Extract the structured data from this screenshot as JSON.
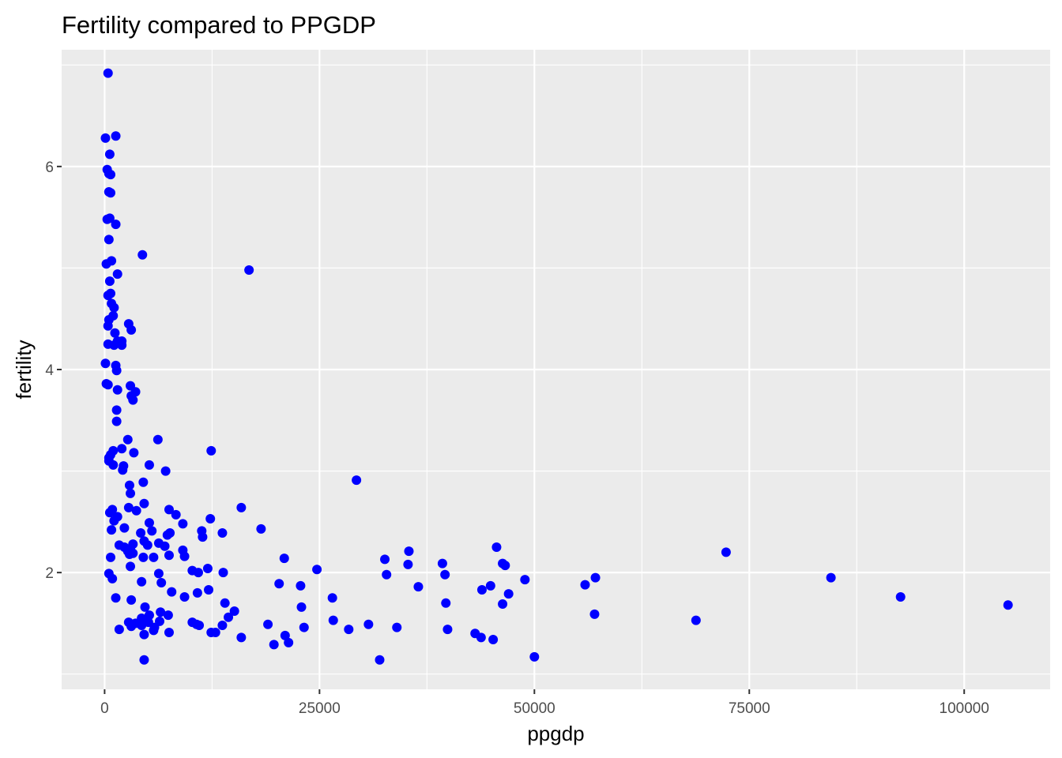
{
  "chart_data": {
    "type": "scatter",
    "title": "Fertility compared to PPGDP",
    "xlabel": "ppgdp",
    "ylabel": "fertility",
    "xlim": [
      -5000,
      110000
    ],
    "ylim": [
      0.85,
      7.15
    ],
    "x_ticks": [
      0,
      25000,
      50000,
      75000,
      100000
    ],
    "x_tick_labels": [
      "0",
      "25000",
      "50000",
      "75000",
      "100000"
    ],
    "y_ticks": [
      2,
      4,
      6
    ],
    "y_tick_labels": [
      "2",
      "4",
      "6"
    ],
    "x_minor_ticks": [
      12500,
      37500,
      62500,
      87500
    ],
    "y_minor_ticks": [
      1,
      3,
      5,
      7
    ],
    "grid": true,
    "colors": {
      "points": "#0000ff",
      "panel": "#ebebeb",
      "grid": "#ffffff",
      "tick_label": "#4d4d4d",
      "tick_mark": "#333333"
    },
    "series": [
      {
        "points": [
          [
            400,
            6.92
          ],
          [
            100,
            6.28
          ],
          [
            1300,
            6.3
          ],
          [
            300,
            5.97
          ],
          [
            600,
            6.12
          ],
          [
            500,
            5.93
          ],
          [
            700,
            5.92
          ],
          [
            500,
            5.75
          ],
          [
            700,
            5.74
          ],
          [
            300,
            5.48
          ],
          [
            600,
            5.49
          ],
          [
            1300,
            5.43
          ],
          [
            500,
            5.28
          ],
          [
            4400,
            5.13
          ],
          [
            800,
            5.07
          ],
          [
            200,
            5.04
          ],
          [
            1500,
            4.94
          ],
          [
            16800,
            4.98
          ],
          [
            600,
            4.87
          ],
          [
            400,
            4.73
          ],
          [
            700,
            4.75
          ],
          [
            800,
            4.65
          ],
          [
            1100,
            4.61
          ],
          [
            1000,
            4.53
          ],
          [
            500,
            4.49
          ],
          [
            400,
            4.43
          ],
          [
            2800,
            4.45
          ],
          [
            3100,
            4.39
          ],
          [
            1200,
            4.36
          ],
          [
            1500,
            4.28
          ],
          [
            2000,
            4.28
          ],
          [
            400,
            4.25
          ],
          [
            1100,
            4.24
          ],
          [
            2000,
            4.24
          ],
          [
            100,
            4.06
          ],
          [
            1300,
            4.04
          ],
          [
            1400,
            3.99
          ],
          [
            200,
            3.86
          ],
          [
            400,
            3.85
          ],
          [
            1500,
            3.8
          ],
          [
            3000,
            3.84
          ],
          [
            3600,
            3.78
          ],
          [
            3100,
            3.74
          ],
          [
            3300,
            3.7
          ],
          [
            1400,
            3.6
          ],
          [
            1400,
            3.49
          ],
          [
            2700,
            3.31
          ],
          [
            6200,
            3.31
          ],
          [
            2000,
            3.22
          ],
          [
            1000,
            3.2
          ],
          [
            3400,
            3.18
          ],
          [
            12400,
            3.2
          ],
          [
            700,
            3.16
          ],
          [
            500,
            3.13
          ],
          [
            500,
            3.1
          ],
          [
            1000,
            3.06
          ],
          [
            2200,
            3.05
          ],
          [
            2100,
            3.01
          ],
          [
            5200,
            3.06
          ],
          [
            7100,
            3.0
          ],
          [
            4500,
            2.89
          ],
          [
            29300,
            2.91
          ],
          [
            2900,
            2.86
          ],
          [
            3000,
            2.78
          ],
          [
            4600,
            2.68
          ],
          [
            15900,
            2.64
          ],
          [
            2800,
            2.64
          ],
          [
            3700,
            2.61
          ],
          [
            7500,
            2.62
          ],
          [
            900,
            2.62
          ],
          [
            600,
            2.59
          ],
          [
            8300,
            2.57
          ],
          [
            1500,
            2.55
          ],
          [
            1100,
            2.51
          ],
          [
            12300,
            2.53
          ],
          [
            5200,
            2.49
          ],
          [
            9100,
            2.48
          ],
          [
            2300,
            2.44
          ],
          [
            18200,
            2.43
          ],
          [
            800,
            2.42
          ],
          [
            11300,
            2.41
          ],
          [
            5500,
            2.41
          ],
          [
            4200,
            2.39
          ],
          [
            13700,
            2.39
          ],
          [
            7600,
            2.39
          ],
          [
            7300,
            2.37
          ],
          [
            11400,
            2.35
          ],
          [
            4600,
            2.31
          ],
          [
            6300,
            2.29
          ],
          [
            3300,
            2.28
          ],
          [
            1700,
            2.27
          ],
          [
            5000,
            2.27
          ],
          [
            7000,
            2.26
          ],
          [
            45600,
            2.25
          ],
          [
            2300,
            2.25
          ],
          [
            3000,
            2.23
          ],
          [
            2700,
            2.21
          ],
          [
            35400,
            2.21
          ],
          [
            72300,
            2.2
          ],
          [
            9100,
            2.22
          ],
          [
            2900,
            2.18
          ],
          [
            3300,
            2.19
          ],
          [
            7500,
            2.17
          ],
          [
            9300,
            2.16
          ],
          [
            4500,
            2.15
          ],
          [
            5700,
            2.15
          ],
          [
            700,
            2.15
          ],
          [
            20900,
            2.14
          ],
          [
            32600,
            2.13
          ],
          [
            39300,
            2.09
          ],
          [
            46300,
            2.09
          ],
          [
            46600,
            2.07
          ],
          [
            35300,
            2.08
          ],
          [
            3000,
            2.06
          ],
          [
            12000,
            2.04
          ],
          [
            24700,
            2.03
          ],
          [
            10200,
            2.02
          ],
          [
            13800,
            2.0
          ],
          [
            10900,
            2.0
          ],
          [
            6300,
            1.99
          ],
          [
            500,
            1.99
          ],
          [
            32800,
            1.98
          ],
          [
            39600,
            1.98
          ],
          [
            84500,
            1.95
          ],
          [
            57100,
            1.95
          ],
          [
            900,
            1.94
          ],
          [
            48900,
            1.93
          ],
          [
            4300,
            1.91
          ],
          [
            6600,
            1.9
          ],
          [
            20300,
            1.89
          ],
          [
            55900,
            1.88
          ],
          [
            22800,
            1.87
          ],
          [
            36500,
            1.86
          ],
          [
            44900,
            1.87
          ],
          [
            43900,
            1.83
          ],
          [
            12100,
            1.83
          ],
          [
            7800,
            1.81
          ],
          [
            10800,
            1.8
          ],
          [
            47000,
            1.79
          ],
          [
            9300,
            1.76
          ],
          [
            92600,
            1.76
          ],
          [
            26500,
            1.75
          ],
          [
            1300,
            1.75
          ],
          [
            3100,
            1.73
          ],
          [
            14000,
            1.7
          ],
          [
            46300,
            1.69
          ],
          [
            39700,
            1.7
          ],
          [
            105100,
            1.68
          ],
          [
            4700,
            1.66
          ],
          [
            22900,
            1.66
          ],
          [
            15100,
            1.62
          ],
          [
            6500,
            1.61
          ],
          [
            5200,
            1.58
          ],
          [
            7400,
            1.58
          ],
          [
            57000,
            1.59
          ],
          [
            14400,
            1.56
          ],
          [
            4300,
            1.55
          ],
          [
            4900,
            1.53
          ],
          [
            6400,
            1.52
          ],
          [
            5100,
            1.51
          ],
          [
            68800,
            1.53
          ],
          [
            26600,
            1.53
          ],
          [
            2800,
            1.51
          ],
          [
            3600,
            1.5
          ],
          [
            19000,
            1.49
          ],
          [
            30700,
            1.49
          ],
          [
            13700,
            1.48
          ],
          [
            4300,
            1.48
          ],
          [
            3100,
            1.47
          ],
          [
            23200,
            1.46
          ],
          [
            34000,
            1.46
          ],
          [
            10200,
            1.51
          ],
          [
            10700,
            1.49
          ],
          [
            11000,
            1.48
          ],
          [
            5800,
            1.46
          ],
          [
            5700,
            1.43
          ],
          [
            1700,
            1.44
          ],
          [
            28400,
            1.44
          ],
          [
            39900,
            1.44
          ],
          [
            7500,
            1.41
          ],
          [
            12400,
            1.41
          ],
          [
            12900,
            1.41
          ],
          [
            4600,
            1.39
          ],
          [
            43100,
            1.4
          ],
          [
            21000,
            1.38
          ],
          [
            15900,
            1.36
          ],
          [
            43800,
            1.36
          ],
          [
            45200,
            1.34
          ],
          [
            21400,
            1.31
          ],
          [
            19700,
            1.29
          ],
          [
            4600,
            1.14
          ],
          [
            32000,
            1.14
          ],
          [
            50000,
            1.17
          ]
        ]
      }
    ]
  }
}
